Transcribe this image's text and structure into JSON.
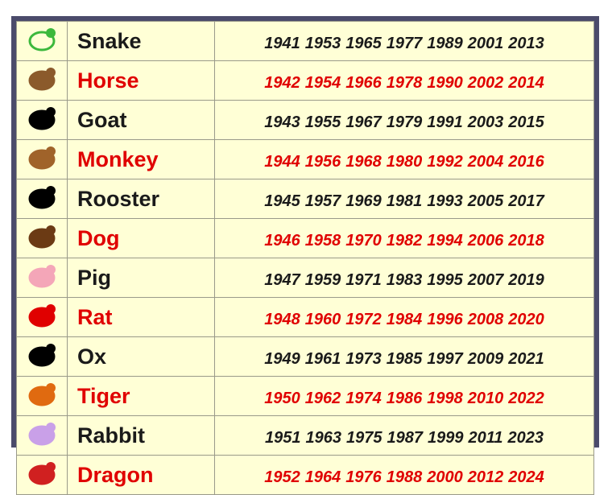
{
  "table": {
    "rows": [
      {
        "name": "Snake",
        "years": [
          1941,
          1953,
          1965,
          1977,
          1989,
          2001,
          2013
        ]
      },
      {
        "name": "Horse",
        "years": [
          1942,
          1954,
          1966,
          1978,
          1990,
          2002,
          2014
        ]
      },
      {
        "name": "Goat",
        "years": [
          1943,
          1955,
          1967,
          1979,
          1991,
          2003,
          2015
        ]
      },
      {
        "name": "Monkey",
        "years": [
          1944,
          1956,
          1968,
          1980,
          1992,
          2004,
          2016
        ]
      },
      {
        "name": "Rooster",
        "years": [
          1945,
          1957,
          1969,
          1981,
          1993,
          2005,
          2017
        ]
      },
      {
        "name": "Dog",
        "years": [
          1946,
          1958,
          1970,
          1982,
          1994,
          2006,
          2018
        ]
      },
      {
        "name": "Pig",
        "years": [
          1947,
          1959,
          1971,
          1983,
          1995,
          2007,
          2019
        ]
      },
      {
        "name": "Rat",
        "years": [
          1948,
          1960,
          1972,
          1984,
          1996,
          2008,
          2020
        ]
      },
      {
        "name": "Ox",
        "years": [
          1949,
          1961,
          1973,
          1985,
          1997,
          2009,
          2021
        ]
      },
      {
        "name": "Tiger",
        "years": [
          1950,
          1962,
          1974,
          1986,
          1998,
          2010,
          2022
        ]
      },
      {
        "name": "Rabbit",
        "years": [
          1951,
          1963,
          1975,
          1987,
          1999,
          2011,
          2023
        ]
      },
      {
        "name": "Dragon",
        "years": [
          1952,
          1964,
          1976,
          1988,
          2000,
          2012,
          2024
        ]
      }
    ]
  }
}
